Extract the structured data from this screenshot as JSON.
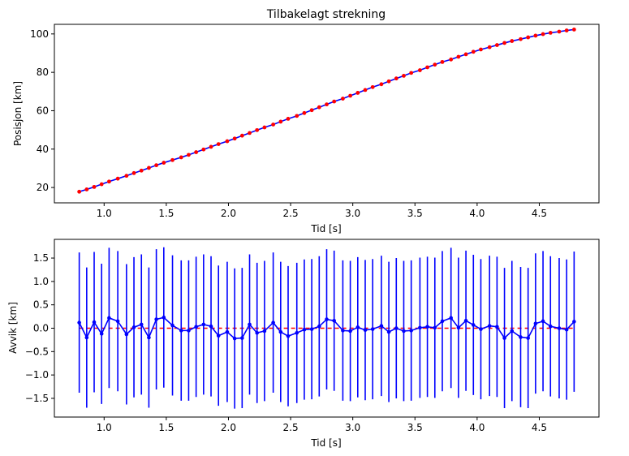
{
  "chart_data": [
    {
      "type": "line",
      "title": "Tilbakelagt strekning",
      "xlabel": "Tid [s]",
      "ylabel": "Posisjon [km]",
      "xlim": [
        0.6,
        4.98
      ],
      "ylim": [
        12,
        105
      ],
      "xticks": [
        1.0,
        1.5,
        2.0,
        2.5,
        3.0,
        3.5,
        4.0,
        4.5
      ],
      "xtick_labels": [
        "1.0",
        "1.5",
        "2.0",
        "2.5",
        "3.0",
        "3.5",
        "4.0",
        "4.5"
      ],
      "yticks": [
        20,
        40,
        60,
        80,
        100
      ],
      "ytick_labels": [
        "20",
        "40",
        "60",
        "80",
        "100"
      ],
      "grid": false,
      "series": [
        {
          "color": "#0000ff",
          "style": "solid",
          "marker": "none",
          "points": "fit"
        },
        {
          "color": "#ff0000",
          "style": "none",
          "marker": "dot",
          "points": "measured"
        }
      ]
    },
    {
      "type": "line",
      "title": "",
      "xlabel": "Tid [s]",
      "ylabel": "Avvik [km]",
      "xlim": [
        0.6,
        4.98
      ],
      "ylim": [
        -1.9,
        1.9
      ],
      "xticks": [
        1.0,
        1.5,
        2.0,
        2.5,
        3.0,
        3.5,
        4.0,
        4.5
      ],
      "xtick_labels": [
        "1.0",
        "1.5",
        "2.0",
        "2.5",
        "3.0",
        "3.5",
        "4.0",
        "4.5"
      ],
      "yticks": [
        -1.5,
        -1.0,
        -0.5,
        0.0,
        0.5,
        1.0,
        1.5
      ],
      "ytick_labels": [
        "−1.5",
        "−1.0",
        "−0.5",
        "0.0",
        "0.5",
        "1.0",
        "1.5"
      ],
      "grid": false,
      "reference_line": {
        "y": 0,
        "color": "#ff0000",
        "style": "dashed"
      },
      "error_bar_color": "#0000ff",
      "line_color": "#0000ff",
      "errorbar_halfwidth": 1.5
    }
  ],
  "measurements": {
    "x": [
      0.8,
      0.86,
      0.92,
      0.98,
      1.04,
      1.11,
      1.18,
      1.24,
      1.3,
      1.36,
      1.42,
      1.48,
      1.55,
      1.62,
      1.68,
      1.74,
      1.8,
      1.86,
      1.92,
      1.99,
      2.05,
      2.11,
      2.17,
      2.23,
      2.29,
      2.36,
      2.42,
      2.48,
      2.55,
      2.61,
      2.67,
      2.73,
      2.79,
      2.85,
      2.92,
      2.98,
      3.04,
      3.1,
      3.16,
      3.23,
      3.29,
      3.35,
      3.41,
      3.47,
      3.54,
      3.6,
      3.66,
      3.72,
      3.79,
      3.85,
      3.91,
      3.97,
      4.03,
      4.1,
      4.16,
      4.22,
      4.28,
      4.35,
      4.41,
      4.47,
      4.53,
      4.59,
      4.66,
      4.72,
      4.78
    ],
    "position": [
      17.8,
      19.0,
      20.3,
      21.7,
      23.1,
      24.6,
      26.1,
      27.5,
      28.8,
      30.2,
      31.6,
      32.9,
      34.3,
      35.7,
      37.0,
      38.4,
      39.8,
      41.2,
      42.6,
      44.1,
      45.5,
      47.0,
      48.4,
      49.9,
      51.3,
      52.8,
      54.3,
      55.8,
      57.3,
      58.8,
      60.3,
      61.8,
      63.3,
      64.8,
      66.3,
      67.8,
      69.3,
      70.8,
      72.3,
      73.8,
      75.3,
      76.8,
      78.2,
      79.7,
      81.1,
      82.6,
      84.0,
      85.4,
      86.7,
      88.1,
      89.4,
      90.7,
      91.9,
      93.1,
      94.2,
      95.3,
      96.3,
      97.3,
      98.2,
      99.1,
      99.9,
      100.6,
      101.2,
      101.8,
      102.3
    ],
    "deviation": [
      0.12,
      -0.2,
      0.13,
      -0.12,
      0.22,
      0.15,
      -0.13,
      0.02,
      0.08,
      -0.2,
      0.19,
      0.23,
      0.06,
      -0.05,
      -0.05,
      0.03,
      0.08,
      0.04,
      -0.16,
      -0.08,
      -0.22,
      -0.21,
      0.08,
      -0.1,
      -0.06,
      0.12,
      -0.08,
      -0.17,
      -0.1,
      -0.03,
      -0.02,
      0.04,
      0.19,
      0.16,
      -0.05,
      -0.06,
      0.02,
      -0.04,
      -0.02,
      0.05,
      -0.08,
      0.0,
      -0.06,
      -0.05,
      0.01,
      0.03,
      0.01,
      0.15,
      0.22,
      0.01,
      0.16,
      0.07,
      -0.02,
      0.05,
      0.03,
      -0.21,
      -0.06,
      -0.19,
      -0.21,
      0.1,
      0.15,
      0.04,
      0.0,
      -0.03,
      0.14
    ]
  }
}
